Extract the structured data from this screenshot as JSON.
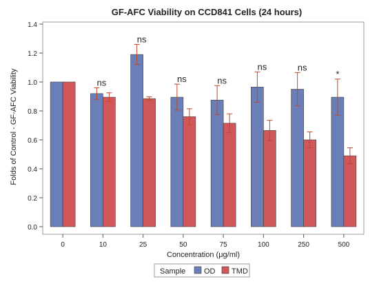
{
  "chart_data": {
    "type": "bar",
    "title": "GF-AFC Viability on CCD841 Cells (24 hours)",
    "xlabel": "Concentration (μg/ml)",
    "ylabel": "Folds of Control - GF-AFC Viability",
    "ylim": [
      0,
      1.45
    ],
    "yticks": [
      "0.0",
      "0.2",
      "0.4",
      "0.6",
      "0.8",
      "1.0",
      "1.2",
      "1.4"
    ],
    "ytick_values": [
      0,
      0.2,
      0.4,
      0.6,
      0.8,
      1.0,
      1.2,
      1.4
    ],
    "categories": [
      "0",
      "10",
      "25",
      "50",
      "75",
      "100",
      "250",
      "500"
    ],
    "series": [
      {
        "name": "OD",
        "color": "#6a7fb8",
        "values": [
          1.0,
          0.92,
          1.19,
          0.895,
          0.875,
          0.965,
          0.95,
          0.895
        ],
        "err": [
          0,
          0.04,
          0.07,
          0.09,
          0.1,
          0.105,
          0.115,
          0.125
        ]
      },
      {
        "name": "TMD",
        "color": "#d0585b",
        "values": [
          1.0,
          0.895,
          0.885,
          0.76,
          0.715,
          0.665,
          0.6,
          0.49
        ],
        "err": [
          0,
          0.03,
          0.012,
          0.055,
          0.065,
          0.07,
          0.055,
          0.055
        ]
      }
    ],
    "annotations": [
      "",
      "ns",
      "ns",
      "ns",
      "ns",
      "ns",
      "ns",
      "*"
    ],
    "legend": {
      "title": "Sample",
      "position": "bottom"
    },
    "grid": false
  }
}
